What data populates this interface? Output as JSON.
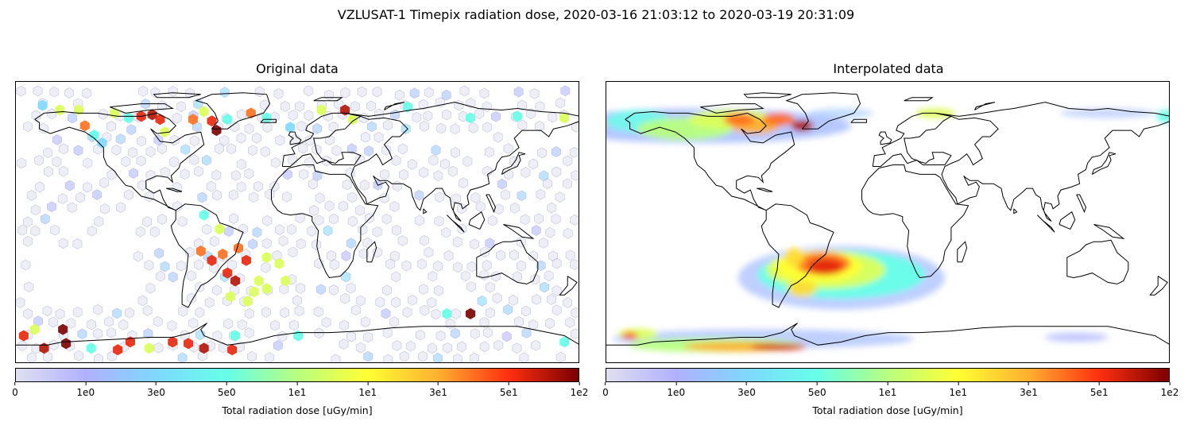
{
  "figure": {
    "title": "VZLUSAT-1 Timepix radiation dose, 2020-03-16 21:03:12 to 2020-03-19 20:31:09"
  },
  "panels": [
    {
      "title": "Original data",
      "colorbar_label": "Total radiation dose [uGy/min]"
    },
    {
      "title": "Interpolated data",
      "colorbar_label": "Total radiation dose [uGy/min]"
    }
  ],
  "colorbar": {
    "ticks": [
      "0",
      "1e0",
      "3e0",
      "5e0",
      "1e1",
      "1e1",
      "3e1",
      "5e1",
      "1e2"
    ],
    "colormap": [
      "#e0e0f0",
      "#b0b0ff",
      "#7fd8ff",
      "#66ffe8",
      "#b8ff80",
      "#ffff33",
      "#ffb030",
      "#ff3010",
      "#7a0000"
    ]
  },
  "chart_data": [
    {
      "type": "heatmap",
      "title": "Original data",
      "projection": "plate-carree",
      "xlim": [
        -180,
        180
      ],
      "ylim": [
        -90,
        90
      ],
      "colorbar": {
        "label": "Total radiation dose [uGy/min]",
        "range": [
          0,
          100
        ]
      },
      "background_hexes": "low-dose hexbin cells over most of the globe",
      "points": [
        {
          "lon": -163,
          "lat": 75,
          "v": 3
        },
        {
          "lon": -152,
          "lat": 72,
          "v": 10
        },
        {
          "lon": -140,
          "lat": 72,
          "v": 10
        },
        {
          "lon": -136,
          "lat": 62,
          "v": 40
        },
        {
          "lon": -130,
          "lat": 56,
          "v": 5
        },
        {
          "lon": -125,
          "lat": 51,
          "v": 3
        },
        {
          "lon": -117,
          "lat": 70,
          "v": 10
        },
        {
          "lon": -108,
          "lat": 67,
          "v": 5
        },
        {
          "lon": -100,
          "lat": 68,
          "v": 60
        },
        {
          "lon": -93,
          "lat": 69,
          "v": 80
        },
        {
          "lon": -88,
          "lat": 66,
          "v": 60
        },
        {
          "lon": -85,
          "lat": 58,
          "v": 10
        },
        {
          "lon": -67,
          "lat": 66,
          "v": 40
        },
        {
          "lon": -60,
          "lat": 71,
          "v": 10
        },
        {
          "lon": -55,
          "lat": 65,
          "v": 60
        },
        {
          "lon": -52,
          "lat": 59,
          "v": 100
        },
        {
          "lon": -45,
          "lat": 66,
          "v": 5
        },
        {
          "lon": -30,
          "lat": 70,
          "v": 40
        },
        {
          "lon": -20,
          "lat": 67,
          "v": 5
        },
        {
          "lon": -5,
          "lat": 61,
          "v": 3
        },
        {
          "lon": 15,
          "lat": 72,
          "v": 10
        },
        {
          "lon": 30,
          "lat": 72,
          "v": 80
        },
        {
          "lon": 35,
          "lat": 66,
          "v": 10
        },
        {
          "lon": 70,
          "lat": 74,
          "v": 5
        },
        {
          "lon": 110,
          "lat": 67,
          "v": 5
        },
        {
          "lon": 140,
          "lat": 68,
          "v": 5
        },
        {
          "lon": 170,
          "lat": 67,
          "v": 10
        },
        {
          "lon": -60,
          "lat": 5,
          "v": 5
        },
        {
          "lon": -50,
          "lat": -4,
          "v": 10
        },
        {
          "lon": -62,
          "lat": -18,
          "v": 40
        },
        {
          "lon": -48,
          "lat": -20,
          "v": 40
        },
        {
          "lon": -38,
          "lat": -16,
          "v": 40
        },
        {
          "lon": -33,
          "lat": -24,
          "v": 60
        },
        {
          "lon": -55,
          "lat": -24,
          "v": 60
        },
        {
          "lon": -45,
          "lat": -32,
          "v": 60
        },
        {
          "lon": -40,
          "lat": -37,
          "v": 80
        },
        {
          "lon": -20,
          "lat": -22,
          "v": 10
        },
        {
          "lon": -12,
          "lat": -26,
          "v": 10
        },
        {
          "lon": -8,
          "lat": -37,
          "v": 10
        },
        {
          "lon": -25,
          "lat": -37,
          "v": 10
        },
        {
          "lon": -43,
          "lat": -47,
          "v": 10
        },
        {
          "lon": -28,
          "lat": -44,
          "v": 10
        },
        {
          "lon": -32,
          "lat": -50,
          "v": 10
        },
        {
          "lon": -20,
          "lat": -42,
          "v": 10
        },
        {
          "lon": -175,
          "lat": -72,
          "v": 60
        },
        {
          "lon": -168,
          "lat": -68,
          "v": 10
        },
        {
          "lon": -162,
          "lat": -80,
          "v": 80
        },
        {
          "lon": -148,
          "lat": -77,
          "v": 100
        },
        {
          "lon": -150,
          "lat": -68,
          "v": 100
        },
        {
          "lon": -132,
          "lat": -80,
          "v": 5
        },
        {
          "lon": -115,
          "lat": -81,
          "v": 60
        },
        {
          "lon": -107,
          "lat": -76,
          "v": 60
        },
        {
          "lon": -95,
          "lat": -80,
          "v": 10
        },
        {
          "lon": -80,
          "lat": -76,
          "v": 60
        },
        {
          "lon": -70,
          "lat": -77,
          "v": 60
        },
        {
          "lon": -60,
          "lat": -80,
          "v": 80
        },
        {
          "lon": -42,
          "lat": -81,
          "v": 60
        },
        {
          "lon": 110,
          "lat": -58,
          "v": 100
        },
        {
          "lon": 95,
          "lat": -58,
          "v": 5
        },
        {
          "lon": -40,
          "lat": -72,
          "v": 5
        },
        {
          "lon": 0,
          "lat": -72,
          "v": 5
        },
        {
          "lon": 170,
          "lat": -76,
          "v": 5
        }
      ]
    },
    {
      "type": "heatmap",
      "title": "Interpolated data",
      "projection": "plate-carree",
      "xlim": [
        -180,
        180
      ],
      "ylim": [
        -90,
        90
      ],
      "colorbar": {
        "label": "Total radiation dose [uGy/min]",
        "range": [
          0,
          100
        ]
      },
      "regions": [
        {
          "name": "north-american-arctic",
          "lon": [
            -180,
            -60
          ],
          "lat": [
            45,
            75
          ],
          "peak": 60
        },
        {
          "name": "south-atlantic-anomaly",
          "lon": [
            -70,
            10
          ],
          "lat": [
            -60,
            -5
          ],
          "peak": 60
        },
        {
          "name": "southern-auroral-band",
          "lon": [
            -180,
            20
          ],
          "lat": [
            -85,
            -60
          ],
          "peak": 60
        }
      ]
    }
  ]
}
